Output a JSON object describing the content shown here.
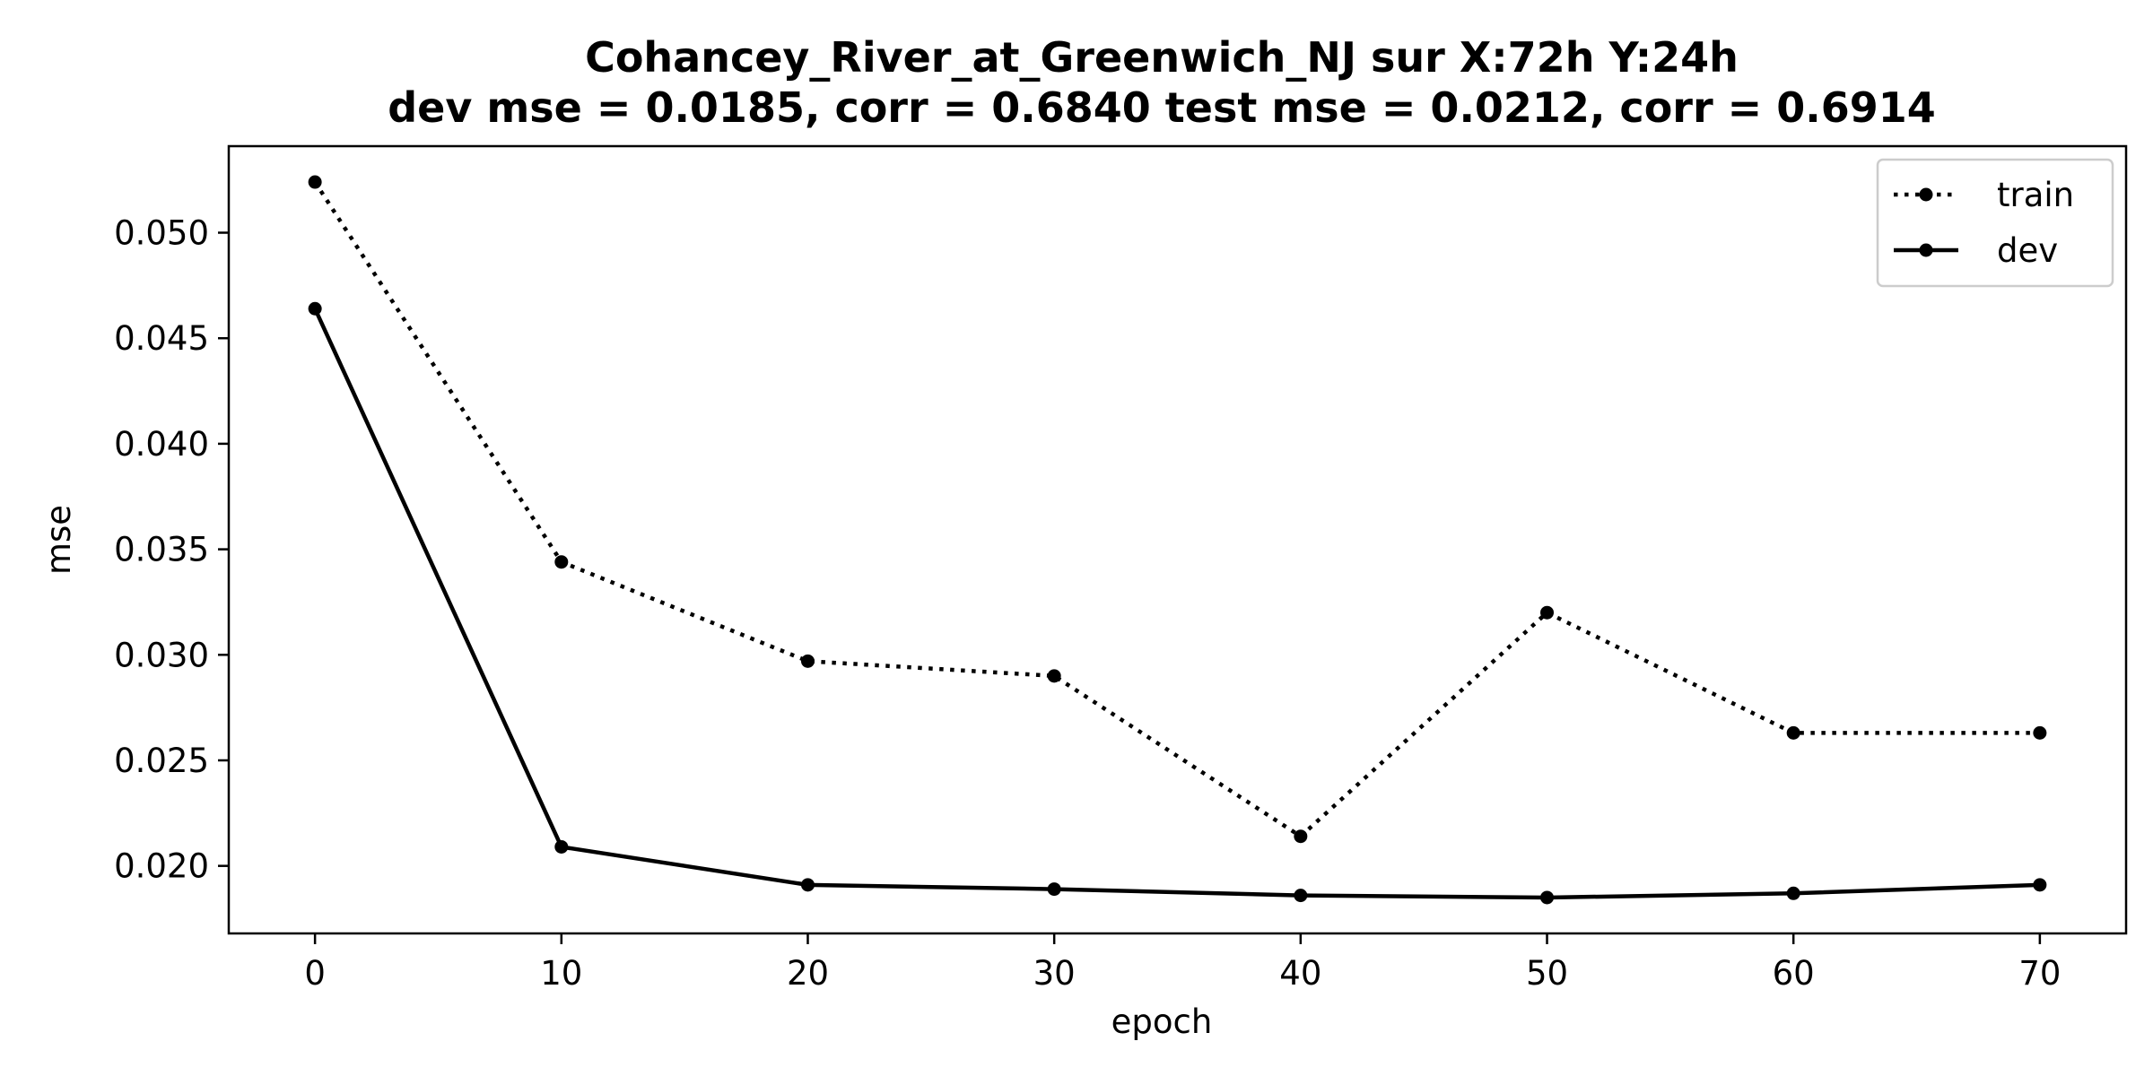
{
  "chart_data": {
    "type": "line",
    "title": "Cohancey_River_at_Greenwich_NJ   sur   X:72h   Y:24h",
    "subtitle": "dev mse = 0.0185, corr = 0.6840   test mse = 0.0212, corr = 0.6914",
    "xlabel": "epoch",
    "ylabel": "mse",
    "xlim": [
      -3.5,
      73.5
    ],
    "ylim": [
      0.0168,
      0.0541
    ],
    "xticks": [
      0,
      10,
      20,
      30,
      40,
      50,
      60,
      70
    ],
    "xtick_labels": [
      "0",
      "10",
      "20",
      "30",
      "40",
      "50",
      "60",
      "70"
    ],
    "yticks": [
      0.02,
      0.025,
      0.03,
      0.035,
      0.04,
      0.045,
      0.05
    ],
    "ytick_labels": [
      "0.020",
      "0.025",
      "0.030",
      "0.035",
      "0.040",
      "0.045",
      "0.050"
    ],
    "grid": false,
    "legend_position": "top-right",
    "line_color": "#000000",
    "x": [
      0,
      10,
      20,
      30,
      40,
      50,
      60,
      70
    ],
    "series": [
      {
        "name": "train",
        "style": "dotted",
        "values": [
          0.0524,
          0.0344,
          0.0297,
          0.029,
          0.0214,
          0.032,
          0.0263,
          0.0263
        ]
      },
      {
        "name": "dev",
        "style": "solid",
        "values": [
          0.0464,
          0.0209,
          0.0191,
          0.0189,
          0.0186,
          0.0185,
          0.0187,
          0.0191
        ]
      }
    ]
  }
}
